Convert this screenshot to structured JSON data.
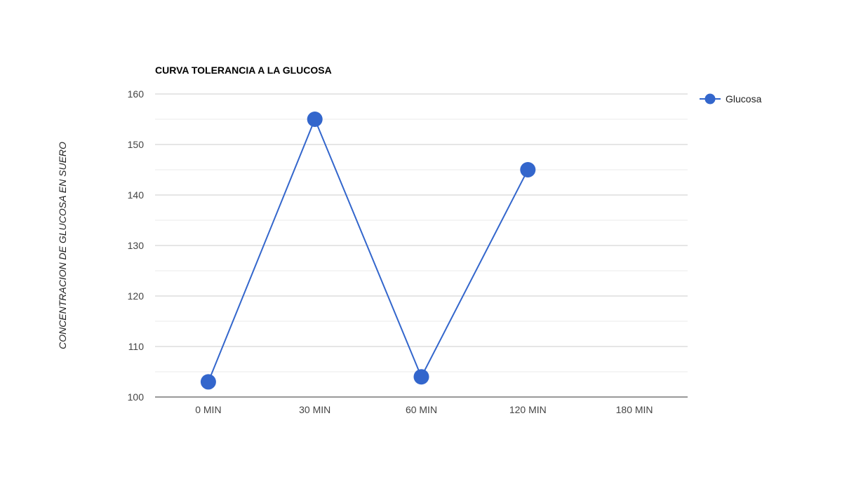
{
  "chart_data": {
    "type": "line",
    "title": "CURVA TOLERANCIA A LA GLUCOSA",
    "xlabel": "",
    "ylabel": "CONCENTRACION DE GLUCOSA EN SUERO",
    "categories": [
      "0 MIN",
      "30 MIN",
      "60 MIN",
      "120 MIN",
      "180 MIN"
    ],
    "series": [
      {
        "name": "Glucosa",
        "values": [
          103,
          155,
          104,
          145,
          null
        ],
        "color": "#3366cc"
      }
    ],
    "ylim": [
      100,
      160
    ],
    "yticks": [
      100,
      110,
      120,
      130,
      140,
      150,
      160
    ],
    "grid": true,
    "legend": "right"
  }
}
